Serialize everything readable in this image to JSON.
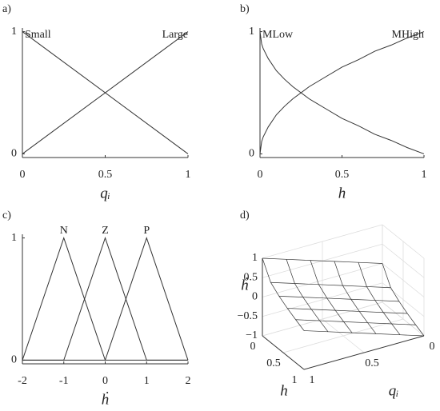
{
  "chart_data": [
    {
      "type": "line",
      "panel": "a)",
      "xlabel": "qᵢ",
      "series": [
        {
          "name": "Small",
          "color": "#333333",
          "x": [
            0,
            1
          ],
          "values": [
            1,
            0
          ]
        },
        {
          "name": "Large",
          "color": "#333333",
          "x": [
            0,
            1
          ],
          "values": [
            0,
            1
          ]
        }
      ],
      "xlim": [
        0,
        1
      ],
      "xticks": [
        0,
        0.5,
        1
      ],
      "ylim": [
        -0.03,
        1.03
      ],
      "yticks": [
        0,
        1
      ]
    },
    {
      "type": "line",
      "panel": "b)",
      "xlabel": "h",
      "series": [
        {
          "name": "MLow",
          "color": "#333333",
          "x": [
            0,
            0.01,
            0.02,
            0.05,
            0.1,
            0.15,
            0.2,
            0.3,
            0.4,
            0.5,
            0.6,
            0.7,
            0.8,
            0.9,
            1
          ],
          "values": [
            1,
            0.9,
            0.86,
            0.78,
            0.68,
            0.61,
            0.55,
            0.45,
            0.37,
            0.29,
            0.23,
            0.16,
            0.11,
            0.05,
            0
          ]
        },
        {
          "name": "MHigh",
          "color": "#333333",
          "x": [
            0,
            0.01,
            0.02,
            0.05,
            0.1,
            0.15,
            0.2,
            0.3,
            0.4,
            0.5,
            0.6,
            0.7,
            0.8,
            0.9,
            1
          ],
          "values": [
            0,
            0.1,
            0.14,
            0.22,
            0.32,
            0.39,
            0.45,
            0.55,
            0.63,
            0.71,
            0.77,
            0.84,
            0.89,
            0.95,
            1
          ]
        }
      ],
      "xlim": [
        0,
        1
      ],
      "xticks": [
        0,
        0.5,
        1
      ],
      "ylim": [
        -0.03,
        1.03
      ],
      "yticks": [
        0,
        1
      ]
    },
    {
      "type": "line",
      "panel": "c)",
      "xlabel": "ḣ",
      "series": [
        {
          "name": "N",
          "color": "#333333",
          "x": [
            -2,
            -1,
            0,
            2
          ],
          "values": [
            0,
            1,
            0,
            0
          ]
        },
        {
          "name": "Z",
          "color": "#333333",
          "x": [
            -2,
            -1,
            0,
            1,
            2
          ],
          "values": [
            0,
            0,
            1,
            0,
            0
          ]
        },
        {
          "name": "P",
          "color": "#333333",
          "x": [
            -2,
            0,
            1,
            2
          ],
          "values": [
            0,
            0,
            1,
            0
          ]
        }
      ],
      "xlim": [
        -2,
        2
      ],
      "xticks": [
        -2,
        -1,
        0,
        1,
        2
      ],
      "ylim": [
        -0.03,
        1.03
      ],
      "yticks": [
        0,
        1
      ]
    },
    {
      "type": "surface",
      "panel": "d)",
      "xlabel": "qᵢ",
      "ylabel": "h",
      "zlabel": "ḣ",
      "x": [
        0,
        0.2,
        0.4,
        0.6,
        0.8,
        1
      ],
      "y": [
        0,
        0.2,
        0.4,
        0.6,
        0.8,
        1
      ],
      "z": [
        [
          0,
          0.2,
          0.4,
          0.6,
          0.8,
          1
        ],
        [
          -0.45,
          -0.25,
          -0.05,
          0.15,
          0.35,
          0.55
        ],
        [
          -0.63,
          -0.43,
          -0.23,
          -0.03,
          0.17,
          0.37
        ],
        [
          -0.77,
          -0.57,
          -0.37,
          -0.17,
          0.03,
          0.23
        ],
        [
          -0.89,
          -0.69,
          -0.49,
          -0.29,
          -0.09,
          0.11
        ],
        [
          -1,
          -0.8,
          -0.6,
          -0.4,
          -0.2,
          0
        ]
      ],
      "color": "#333333",
      "xlim": [
        0,
        1
      ],
      "xticks": [
        0,
        0.5,
        1
      ],
      "ylim": [
        0,
        1
      ],
      "yticks": [
        0,
        0.5,
        1
      ],
      "zlim": [
        -1,
        1
      ],
      "zticks": [
        {
          "value": -1,
          "label": "−1"
        },
        {
          "value": -0.5,
          "label": "−0.5"
        },
        0,
        0.5,
        1
      ]
    }
  ]
}
